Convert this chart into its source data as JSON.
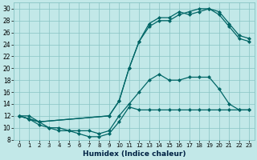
{
  "xlabel": "Humidex (Indice chaleur)",
  "bg_color": "#c2e8e8",
  "grid_color": "#88c4c4",
  "line_color": "#006666",
  "xlim": [
    -0.5,
    23.5
  ],
  "ylim": [
    8,
    31
  ],
  "xticks": [
    0,
    1,
    2,
    3,
    4,
    5,
    6,
    7,
    8,
    9,
    10,
    11,
    12,
    13,
    14,
    15,
    16,
    17,
    18,
    19,
    20,
    21,
    22,
    23
  ],
  "yticks": [
    8,
    10,
    12,
    14,
    16,
    18,
    20,
    22,
    24,
    26,
    28,
    30
  ],
  "line1_x": [
    0,
    1,
    2,
    3,
    4,
    5,
    6,
    7,
    8,
    9,
    10,
    11,
    12,
    13,
    14,
    15,
    16,
    17,
    18,
    19,
    20,
    21,
    22,
    23
  ],
  "line1_y": [
    12,
    11.5,
    10.5,
    10,
    9.5,
    9.5,
    9,
    8.5,
    8.5,
    9,
    11,
    13.5,
    13,
    13,
    13,
    13,
    13,
    13,
    13,
    13,
    13,
    13,
    13,
    13
  ],
  "line2_x": [
    0,
    1,
    2,
    3,
    4,
    5,
    6,
    7,
    8,
    9,
    10,
    11,
    12,
    13,
    14,
    15,
    16,
    17,
    18,
    19,
    20,
    21,
    22,
    23
  ],
  "line2_y": [
    12,
    12,
    11,
    10,
    10,
    9.5,
    9.5,
    9.5,
    9,
    9.5,
    12,
    14,
    16,
    18,
    19,
    18,
    18,
    18.5,
    18.5,
    18.5,
    16.5,
    14,
    13,
    13
  ],
  "line3_x": [
    0,
    1,
    2,
    9,
    10,
    11,
    12,
    13,
    14,
    15,
    16,
    17,
    18,
    19,
    20,
    21,
    22,
    23
  ],
  "line3_y": [
    12,
    11.5,
    11,
    12,
    14.5,
    20,
    24.5,
    27,
    28,
    28,
    29,
    29.5,
    30,
    30,
    29,
    27,
    25,
    24.5
  ],
  "line4_x": [
    0,
    1,
    2,
    9,
    10,
    11,
    12,
    13,
    14,
    15,
    16,
    17,
    18,
    19,
    20,
    21,
    22,
    23
  ],
  "line4_y": [
    12,
    11.5,
    11,
    12,
    14.5,
    20,
    24.5,
    27.5,
    28.5,
    28.5,
    29.5,
    29,
    29.5,
    30,
    29.5,
    27.5,
    25.5,
    25
  ]
}
